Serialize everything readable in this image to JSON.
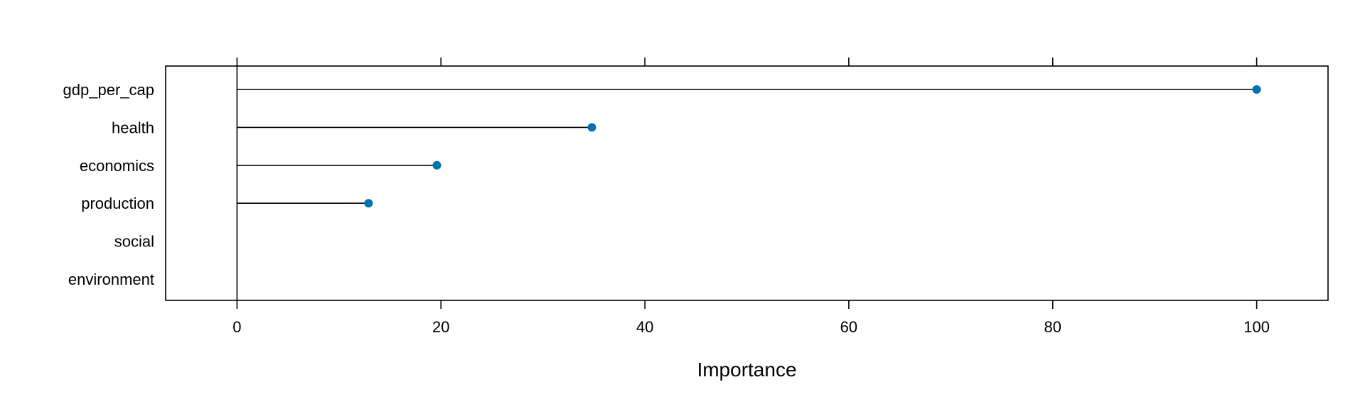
{
  "colors": {
    "point": "#0072B2",
    "line": "#000000",
    "background": "#ffffff"
  },
  "chart_data": {
    "type": "dot",
    "categories": [
      "gdp_per_cap",
      "health",
      "economics",
      "production",
      "social",
      "environment"
    ],
    "values": [
      100,
      34.8,
      19.6,
      12.9,
      0,
      0
    ],
    "xlabel": "Importance",
    "ylabel": "",
    "xlim": [
      -7,
      107
    ],
    "xticks": [
      0,
      20,
      40,
      60,
      80,
      100
    ],
    "reference_line": 0,
    "ticks_top": true,
    "grid": false
  }
}
